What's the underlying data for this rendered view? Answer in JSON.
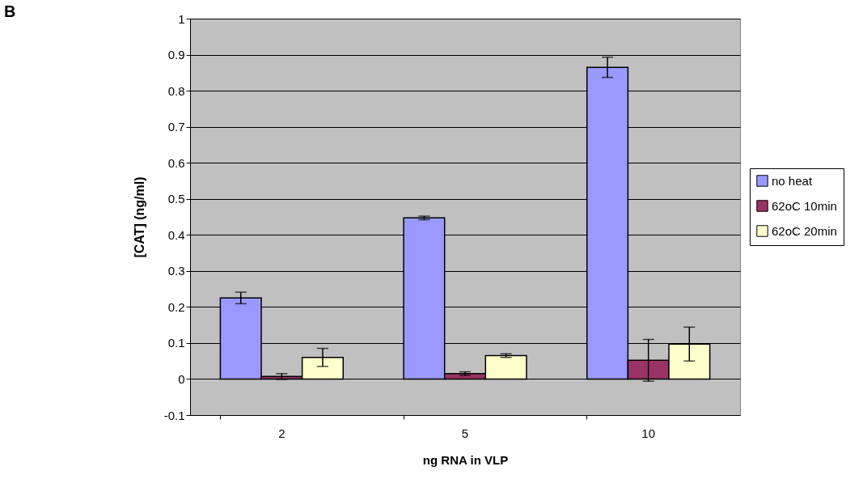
{
  "chart_data": {
    "type": "bar",
    "xlabel": "ng RNA in VLP",
    "ylabel": "[CAT] (ng/ml)",
    "annotations": [
      "B"
    ],
    "categories": [
      "2",
      "5",
      "10"
    ],
    "series": [
      {
        "name": "no heat",
        "color": "#9999ff",
        "values": [
          0.225,
          0.447,
          0.865
        ],
        "errors": [
          0.016,
          0.005,
          0.028
        ]
      },
      {
        "name": "62oC 10min",
        "color": "#993366",
        "values": [
          0.007,
          0.015,
          0.052
        ],
        "errors": [
          0.008,
          0.005,
          0.058
        ]
      },
      {
        "name": "62oC 20min",
        "color": "#ffffcc",
        "values": [
          0.06,
          0.065,
          0.097
        ],
        "errors": [
          0.025,
          0.005,
          0.047
        ]
      }
    ],
    "ylim": [
      -0.1,
      1
    ],
    "yticks": [
      -0.1,
      0,
      0.1,
      0.2,
      0.3,
      0.4,
      0.5,
      0.6,
      0.7,
      0.8,
      0.9,
      1
    ],
    "grid": "y",
    "legend": "right"
  }
}
